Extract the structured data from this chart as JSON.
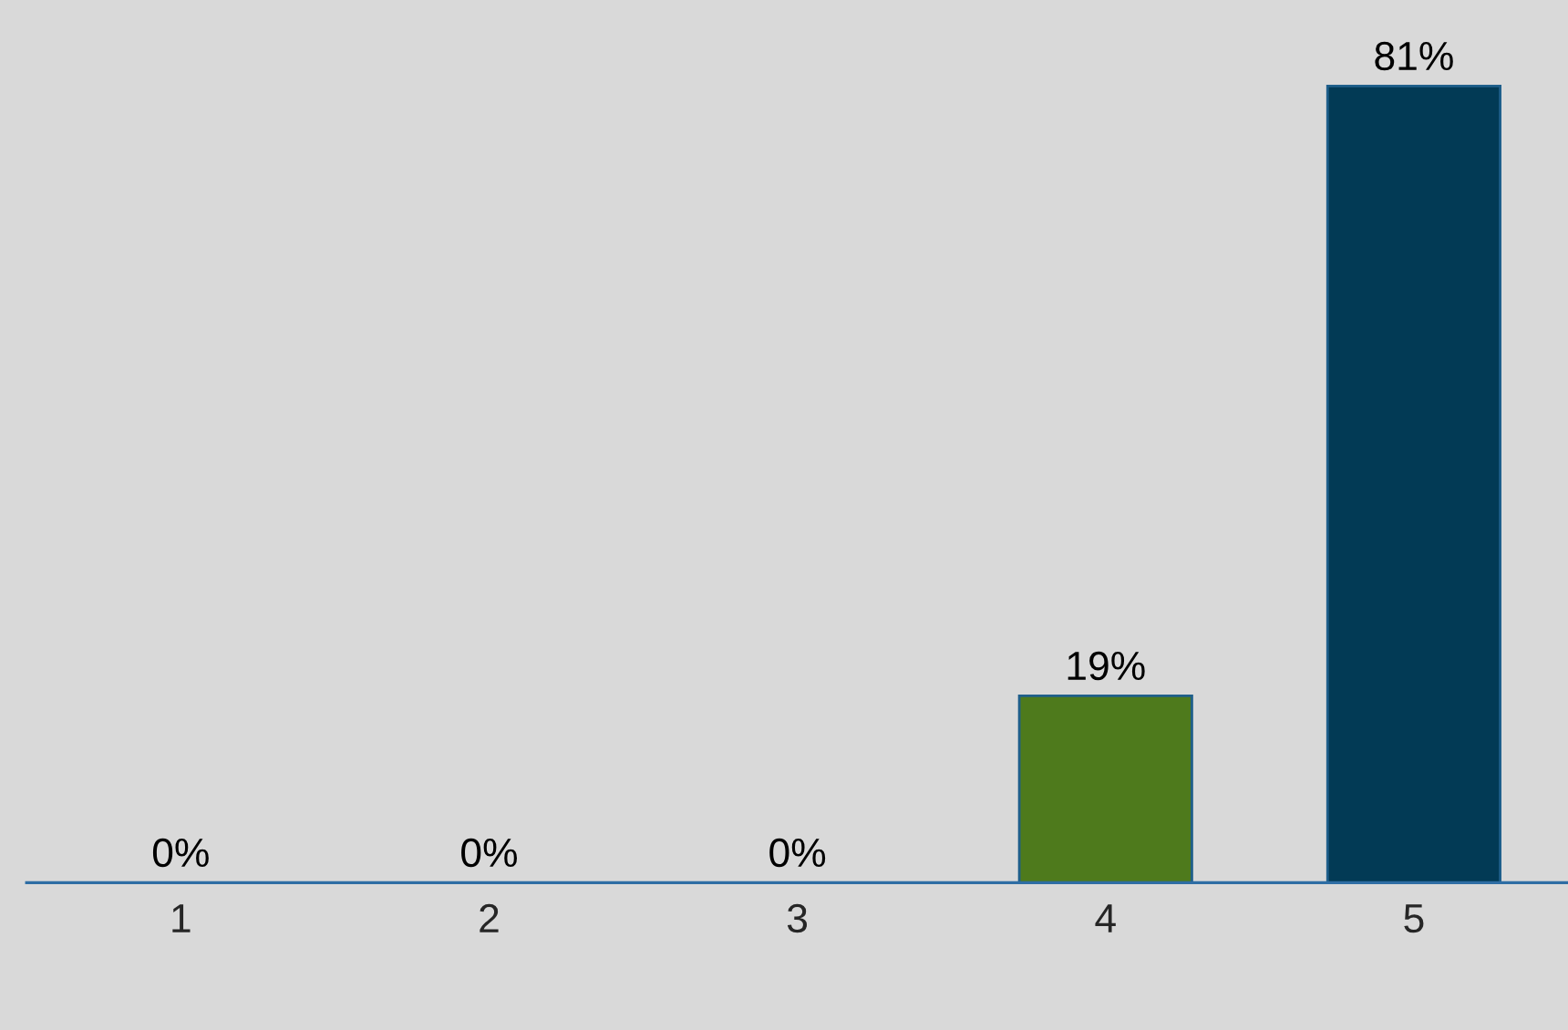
{
  "chart_data": {
    "type": "bar",
    "categories": [
      "1",
      "2",
      "3",
      "4",
      "5"
    ],
    "values": [
      0,
      0,
      0,
      19,
      81
    ],
    "value_labels": [
      "0%",
      "0%",
      "0%",
      "19%",
      "81%"
    ],
    "colors": [
      "#1f5f8b",
      "#1f5f8b",
      "#1f5f8b",
      "#4e7a1c",
      "#023a55"
    ],
    "grid": false,
    "legend": false
  }
}
